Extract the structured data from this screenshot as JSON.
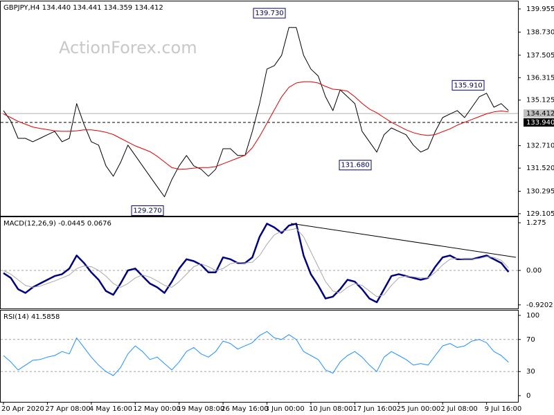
{
  "chart_data": [
    {
      "type": "line",
      "title": "GBPJPY,H4  134.440 134.441 134.359 134.412",
      "watermark": "ActionForex.com",
      "ylim": [
        129.03,
        140.32
      ],
      "yticks": [
        139.955,
        {
          "value": 138.73,
          "label": "138.730"
        },
        137.505,
        136.315,
        135.125,
        {
          "value": 132.71,
          "label": "132.710"
        },
        {
          "value": 131.52,
          "label": "131.520"
        },
        130.295,
        129.105
      ],
      "series": [
        {
          "name": "GBPJPY",
          "color": "#000000",
          "line_width": 1,
          "values": [
            134.57,
            134.02,
            133.1,
            133.1,
            132.92,
            133.1,
            133.29,
            133.47,
            132.92,
            133.1,
            134.94,
            133.84,
            132.92,
            132.74,
            131.64,
            131.09,
            131.82,
            132.74,
            132.19,
            131.64,
            131.09,
            130.54,
            130.0,
            130.91,
            131.64,
            132.19,
            131.64,
            131.46,
            131.09,
            131.46,
            132.55,
            132.55,
            132.19,
            132.19,
            133.47,
            134.94,
            136.77,
            136.95,
            137.5,
            138.97,
            138.97,
            137.5,
            136.77,
            136.4,
            135.3,
            134.57,
            135.67,
            135.3,
            134.94,
            133.47,
            132.92,
            132.37,
            133.29,
            133.65,
            133.47,
            133.29,
            132.74,
            132.37,
            132.55,
            133.47,
            134.2,
            134.39,
            134.57,
            134.2,
            134.75,
            135.3,
            135.49,
            134.75,
            134.94,
            134.57
          ]
        },
        {
          "name": "MA",
          "color": "#dd0000",
          "line_width": 1,
          "values": [
            134.39,
            134.2,
            134.0,
            133.85,
            133.7,
            133.62,
            133.56,
            133.5,
            133.47,
            133.47,
            133.5,
            133.55,
            133.55,
            133.5,
            133.42,
            133.3,
            133.1,
            132.9,
            132.7,
            132.55,
            132.4,
            132.15,
            131.85,
            131.55,
            131.46,
            131.48,
            131.52,
            131.55,
            131.55,
            131.6,
            131.75,
            131.9,
            132.05,
            132.2,
            132.6,
            133.2,
            133.9,
            134.6,
            135.3,
            135.8,
            136.03,
            136.1,
            136.1,
            136.03,
            135.85,
            135.7,
            135.67,
            135.6,
            135.3,
            134.95,
            134.65,
            134.45,
            134.2,
            133.95,
            133.75,
            133.55,
            133.4,
            133.3,
            133.25,
            133.3,
            133.45,
            133.6,
            133.8,
            133.95,
            134.1,
            134.25,
            134.4,
            134.5,
            134.55,
            134.5
          ]
        }
      ],
      "annotations": [
        {
          "value": 139.73,
          "label": "139.730"
        },
        {
          "value": 135.91,
          "label": "135.910"
        },
        {
          "value": 131.68,
          "label": "131.680"
        },
        {
          "value": 129.27,
          "label": "129.270"
        }
      ],
      "price_line": {
        "value": 134.412,
        "label": "134.412"
      },
      "level_line": {
        "value": 133.94,
        "label": "133.940"
      }
    },
    {
      "type": "line",
      "title": "MACD(12,26,9) -0.0445 0.0676",
      "ylim": [
        -0.998,
        1.405
      ],
      "yticks": [
        1.275,
        {
          "value": 0,
          "label": "0.00"
        },
        -0.9202
      ],
      "dashed_levels": [
        0
      ],
      "series": [
        {
          "name": "MACD",
          "color": "#000080",
          "line_width": 2.5,
          "values": [
            -0.07,
            -0.2,
            -0.5,
            -0.6,
            -0.45,
            -0.35,
            -0.25,
            -0.15,
            -0.1,
            0.05,
            0.4,
            0.2,
            -0.05,
            -0.25,
            -0.55,
            -0.65,
            -0.35,
            0.0,
            0.05,
            -0.15,
            -0.35,
            -0.45,
            -0.6,
            -0.3,
            0.05,
            0.3,
            0.25,
            0.15,
            -0.05,
            -0.05,
            0.35,
            0.3,
            0.2,
            0.2,
            0.35,
            0.9,
            1.25,
            1.15,
            1.0,
            1.2,
            1.25,
            0.4,
            -0.1,
            -0.4,
            -0.75,
            -0.7,
            -0.5,
            -0.25,
            -0.3,
            -0.5,
            -0.75,
            -0.85,
            -0.5,
            -0.15,
            -0.1,
            -0.15,
            -0.2,
            -0.25,
            -0.2,
            0.1,
            0.35,
            0.4,
            0.3,
            0.3,
            0.3,
            0.35,
            0.4,
            0.3,
            0.2,
            -0.04
          ]
        },
        {
          "name": "Signal",
          "color": "#a8a8a8",
          "line_width": 1,
          "values": [
            0.0,
            -0.1,
            -0.25,
            -0.4,
            -0.45,
            -0.42,
            -0.35,
            -0.28,
            -0.2,
            -0.12,
            0.05,
            0.12,
            0.1,
            0.0,
            -0.15,
            -0.35,
            -0.45,
            -0.35,
            -0.2,
            -0.12,
            -0.18,
            -0.28,
            -0.4,
            -0.45,
            -0.3,
            -0.1,
            0.1,
            0.18,
            0.1,
            0.0,
            0.05,
            0.18,
            0.22,
            0.2,
            0.22,
            0.4,
            0.7,
            0.95,
            1.05,
            1.08,
            1.12,
            0.9,
            0.5,
            0.1,
            -0.3,
            -0.55,
            -0.6,
            -0.45,
            -0.35,
            -0.4,
            -0.55,
            -0.7,
            -0.65,
            -0.4,
            -0.2,
            -0.15,
            -0.17,
            -0.2,
            -0.2,
            -0.05,
            0.15,
            0.3,
            0.33,
            0.3,
            0.3,
            0.32,
            0.37,
            0.35,
            0.27,
            0.07
          ]
        }
      ]
    },
    {
      "type": "line",
      "title": "RSI(14) 41.5858",
      "ylim": [
        -6.9,
        106
      ],
      "yticks": [
        100,
        70,
        30,
        0
      ],
      "dashed_levels": [
        70,
        30
      ],
      "categories": [
        "20 Apr 2020",
        null,
        null,
        null,
        null,
        null,
        "27 Apr 08:00",
        null,
        null,
        null,
        null,
        null,
        "4 May 16:00",
        null,
        null,
        null,
        null,
        null,
        "12 May 00:00",
        null,
        null,
        null,
        null,
        null,
        "19 May 08:00",
        null,
        null,
        null,
        null,
        null,
        "26 May 16:00",
        null,
        null,
        null,
        null,
        null,
        "3 Jun 00:00",
        null,
        null,
        null,
        null,
        null,
        "10 Jun 08:00",
        null,
        null,
        null,
        null,
        null,
        "17 Jun 16:00",
        null,
        null,
        null,
        null,
        null,
        "25 Jun 00:00",
        null,
        null,
        null,
        null,
        null,
        "2 Jul 08:00",
        null,
        null,
        null,
        null,
        null,
        "9 Jul 16:00",
        null,
        null,
        null
      ],
      "series": [
        {
          "name": "RSI",
          "color": "#1e90ff",
          "line_width": 1,
          "values": [
            50,
            42,
            32,
            38,
            44,
            45,
            48,
            50,
            55,
            52,
            72,
            60,
            48,
            38,
            30,
            25,
            35,
            52,
            62,
            55,
            45,
            48,
            40,
            32,
            42,
            55,
            60,
            52,
            48,
            55,
            68,
            65,
            58,
            62,
            66,
            75,
            80,
            72,
            70,
            76,
            70,
            55,
            50,
            45,
            32,
            28,
            42,
            50,
            55,
            48,
            38,
            30,
            48,
            55,
            50,
            45,
            38,
            40,
            38,
            50,
            62,
            65,
            60,
            62,
            68,
            70,
            66,
            55,
            50,
            41.59
          ]
        }
      ]
    }
  ]
}
